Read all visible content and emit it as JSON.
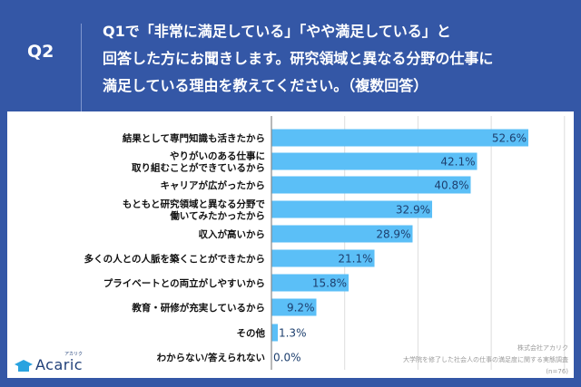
{
  "header": {
    "question_number": "Q2",
    "question_lines": [
      "Q1で「非常に満足している」「やや満足している」と",
      "回答した方にお聞きします。研究領域と異なる分野の仕事に",
      "満足している理由を教えてください。（複数回答）"
    ]
  },
  "chart_data": {
    "type": "bar",
    "orientation": "horizontal",
    "categories": [
      [
        "結果として専門知識も活きたから"
      ],
      [
        "やりがいのある仕事に",
        "取り組むことができているから"
      ],
      [
        "キャリアが広がったから"
      ],
      [
        "もともと研究領域と異なる分野で",
        "働いてみたかったから"
      ],
      [
        "収入が高いから"
      ],
      [
        "多くの人との人脈を築くことができたから"
      ],
      [
        "プライベートとの両立がしやすいから"
      ],
      [
        "教育・研修が充実しているから"
      ],
      [
        "その他"
      ],
      [
        "わからない/答えられない"
      ]
    ],
    "values": [
      52.6,
      42.1,
      40.8,
      32.9,
      28.9,
      21.1,
      15.8,
      9.2,
      1.3,
      0.0
    ],
    "labels": [
      "52.6%",
      "42.1%",
      "40.8%",
      "32.9%",
      "28.9%",
      "21.1%",
      "15.8%",
      "9.2%",
      "1.3%",
      "0.0%"
    ],
    "xlim": [
      0,
      60
    ],
    "grid": true,
    "colors": {
      "bar": "#5bbff7",
      "label": "#1d3f6e"
    }
  },
  "logo": {
    "name": "Acaric",
    "kana": "アカリク"
  },
  "source": {
    "company": "株式会社アカリク",
    "survey": "大学院を修了した社会人の仕事の満足度に関する実態調査",
    "sample": "(n=76)"
  }
}
